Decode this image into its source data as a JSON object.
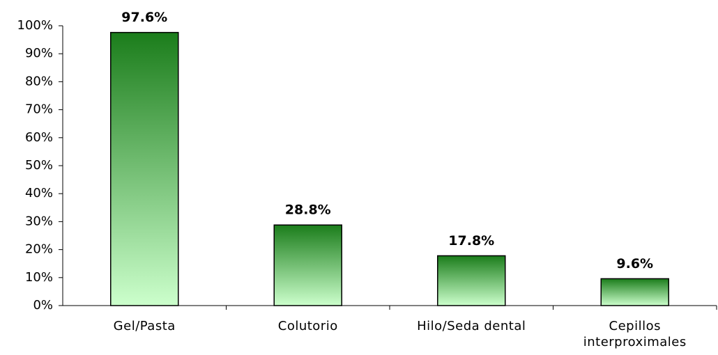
{
  "chart_data": {
    "type": "bar",
    "categories": [
      "Gel/Pasta",
      "Colutorio",
      "Hilo/Seda dental",
      "Cepillos interproximales"
    ],
    "values": [
      97.6,
      28.8,
      17.8,
      9.6
    ],
    "value_labels": [
      "97.6%",
      "28.8%",
      "17.8%",
      "9.6%"
    ],
    "gradient": [
      "#1b7d1b",
      "#ccffcc"
    ],
    "ylim": [
      0,
      100
    ],
    "yticks": [
      {
        "value": 0,
        "label": "0%"
      },
      {
        "value": 10,
        "label": "10%"
      },
      {
        "value": 20,
        "label": "20%"
      },
      {
        "value": 30,
        "label": "30%"
      },
      {
        "value": 40,
        "label": "40%"
      },
      {
        "value": 50,
        "label": "50%"
      },
      {
        "value": 60,
        "label": "60%"
      },
      {
        "value": 70,
        "label": "70%"
      },
      {
        "value": 80,
        "label": "80%"
      },
      {
        "value": 90,
        "label": "90%"
      },
      {
        "value": 100,
        "label": "100%"
      }
    ],
    "grid": false
  }
}
